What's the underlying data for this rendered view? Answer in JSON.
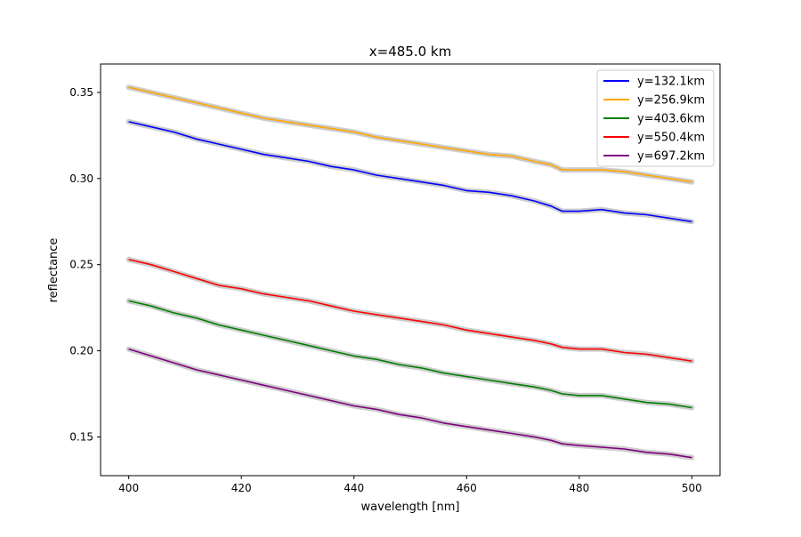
{
  "chart_data": {
    "type": "line",
    "title": "x=485.0 km",
    "xlabel": "wavelength [nm]",
    "ylabel": "reflectance",
    "xlim": [
      395,
      505
    ],
    "ylim": [
      0.1275,
      0.3665
    ],
    "xticks": [
      400,
      420,
      440,
      460,
      480,
      500
    ],
    "xtick_labels": [
      "400",
      "420",
      "440",
      "460",
      "480",
      "500"
    ],
    "yticks": [
      0.15,
      0.2,
      0.25,
      0.3,
      0.35
    ],
    "ytick_labels": [
      "0.15",
      "0.20",
      "0.25",
      "0.30",
      "0.35"
    ],
    "grid": false,
    "legend_position": "top-right",
    "band_color": "#c8c8c8",
    "x": [
      400,
      404,
      408,
      412,
      416,
      420,
      424,
      428,
      432,
      436,
      440,
      444,
      448,
      452,
      456,
      460,
      464,
      468,
      472,
      475,
      477,
      480,
      484,
      488,
      492,
      496,
      500
    ],
    "series": [
      {
        "name": "y=132.1km",
        "color": "#0000ff",
        "values": [
          0.333,
          0.33,
          0.327,
          0.323,
          0.32,
          0.317,
          0.314,
          0.312,
          0.31,
          0.307,
          0.305,
          0.302,
          0.3,
          0.298,
          0.296,
          0.293,
          0.292,
          0.29,
          0.287,
          0.284,
          0.281,
          0.281,
          0.282,
          0.28,
          0.279,
          0.277,
          0.275
        ]
      },
      {
        "name": "y=256.9km",
        "color": "#ffa500",
        "values": [
          0.353,
          0.35,
          0.347,
          0.344,
          0.341,
          0.338,
          0.335,
          0.333,
          0.331,
          0.329,
          0.327,
          0.324,
          0.322,
          0.32,
          0.318,
          0.316,
          0.314,
          0.313,
          0.31,
          0.308,
          0.305,
          0.305,
          0.305,
          0.304,
          0.302,
          0.3,
          0.298
        ]
      },
      {
        "name": "y=403.6km",
        "color": "#008000",
        "values": [
          0.229,
          0.226,
          0.222,
          0.219,
          0.215,
          0.212,
          0.209,
          0.206,
          0.203,
          0.2,
          0.197,
          0.195,
          0.192,
          0.19,
          0.187,
          0.185,
          0.183,
          0.181,
          0.179,
          0.177,
          0.175,
          0.174,
          0.174,
          0.172,
          0.17,
          0.169,
          0.167
        ]
      },
      {
        "name": "y=550.4km",
        "color": "#ff0000",
        "values": [
          0.253,
          0.25,
          0.246,
          0.242,
          0.238,
          0.236,
          0.233,
          0.231,
          0.229,
          0.226,
          0.223,
          0.221,
          0.219,
          0.217,
          0.215,
          0.212,
          0.21,
          0.208,
          0.206,
          0.204,
          0.202,
          0.201,
          0.201,
          0.199,
          0.198,
          0.196,
          0.194
        ]
      },
      {
        "name": "y=697.2km",
        "color": "#800080",
        "values": [
          0.201,
          0.197,
          0.193,
          0.189,
          0.186,
          0.183,
          0.18,
          0.177,
          0.174,
          0.171,
          0.168,
          0.166,
          0.163,
          0.161,
          0.158,
          0.156,
          0.154,
          0.152,
          0.15,
          0.148,
          0.146,
          0.145,
          0.144,
          0.143,
          0.141,
          0.14,
          0.138
        ]
      }
    ]
  }
}
